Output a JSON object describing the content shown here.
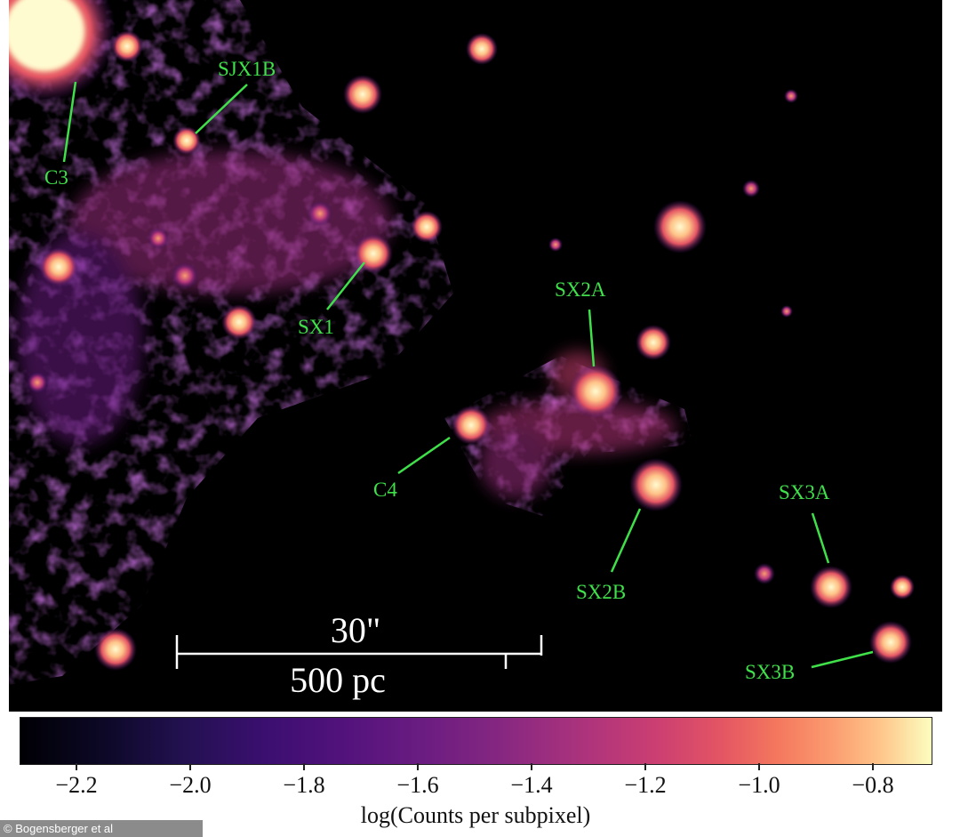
{
  "image": {
    "description_icon": "xray-emission-map",
    "sources": [
      {
        "id": "C3",
        "label": "C3"
      },
      {
        "id": "SJX1B",
        "label": "SJX1B"
      },
      {
        "id": "SX1",
        "label": "SX1"
      },
      {
        "id": "SX2A",
        "label": "SX2A"
      },
      {
        "id": "C4",
        "label": "C4"
      },
      {
        "id": "SX2B",
        "label": "SX2B"
      },
      {
        "id": "SX3A",
        "label": "SX3A"
      },
      {
        "id": "SX3B",
        "label": "SX3B"
      }
    ],
    "scalebar": {
      "angular": "30\"",
      "physical": "500 pc"
    },
    "label_color": "#3fe04a"
  },
  "colorbar": {
    "colormap": "magma",
    "ticks": [
      "−2.2",
      "−2.0",
      "−1.8",
      "−1.6",
      "−1.4",
      "−1.2",
      "−1.0",
      "−0.8"
    ],
    "title": "log(Counts per subpixel)"
  },
  "credit": "© Bogensberger et al"
}
